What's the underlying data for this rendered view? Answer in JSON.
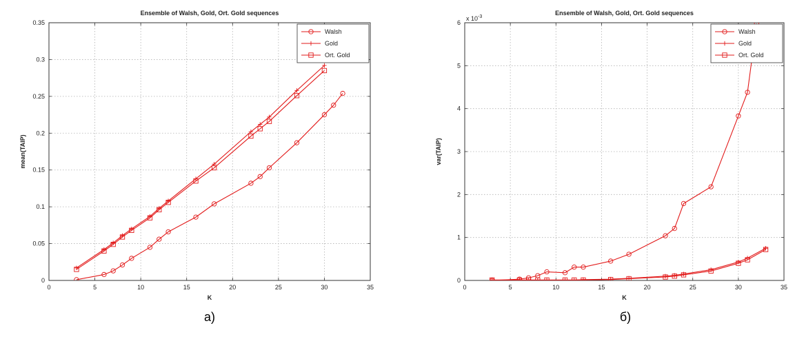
{
  "chart_data": [
    {
      "type": "line",
      "title": "Ensemble of Walsh, Gold, Ort. Gold sequences",
      "xlabel": "K",
      "ylabel": "mean(TAIP)",
      "xlim": [
        0,
        35
      ],
      "ylim": [
        0,
        0.35
      ],
      "xticks": [
        "0",
        "5",
        "10",
        "15",
        "20",
        "25",
        "30",
        "35"
      ],
      "yticks": [
        "0",
        "0.05",
        "0.1",
        "0.15",
        "0.2",
        "0.25",
        "0.3",
        "0.35"
      ],
      "exponent_label": "",
      "grid": true,
      "legend_position": "top-right",
      "caption": "а)",
      "series": [
        {
          "name": "Walsh",
          "marker": "circle",
          "x": [
            3,
            6,
            7,
            8,
            9,
            11,
            12,
            13,
            16,
            18,
            22,
            23,
            24,
            27,
            30,
            31,
            32
          ],
          "y": [
            0.001,
            0.008,
            0.013,
            0.021,
            0.03,
            0.045,
            0.056,
            0.066,
            0.086,
            0.104,
            0.132,
            0.141,
            0.153,
            0.187,
            0.225,
            0.238,
            0.254
          ]
        },
        {
          "name": "Gold",
          "marker": "plus",
          "x": [
            3,
            6,
            7,
            8,
            9,
            11,
            12,
            13,
            16,
            18,
            22,
            23,
            24,
            27,
            30
          ],
          "y": [
            0.017,
            0.042,
            0.051,
            0.061,
            0.07,
            0.087,
            0.098,
            0.108,
            0.138,
            0.158,
            0.202,
            0.212,
            0.222,
            0.258,
            0.292
          ]
        },
        {
          "name": "Ort. Gold",
          "marker": "square",
          "x": [
            3,
            6,
            7,
            8,
            9,
            11,
            12,
            13,
            16,
            18,
            22,
            23,
            24,
            27,
            30
          ],
          "y": [
            0.015,
            0.04,
            0.049,
            0.059,
            0.068,
            0.085,
            0.096,
            0.106,
            0.135,
            0.153,
            0.196,
            0.206,
            0.216,
            0.251,
            0.285
          ]
        }
      ]
    },
    {
      "type": "line",
      "title": "Ensemble of Walsh, Gold, Ort. Gold sequences",
      "xlabel": "K",
      "ylabel": "var(TAIP)",
      "xlim": [
        0,
        35
      ],
      "ylim": [
        0,
        6
      ],
      "xticks": [
        "0",
        "5",
        "10",
        "15",
        "20",
        "25",
        "30",
        "35"
      ],
      "yticks": [
        "0",
        "1",
        "2",
        "3",
        "4",
        "5",
        "6"
      ],
      "exponent_label": "x 10",
      "exponent_power": "-3",
      "grid": true,
      "legend_position": "top-right",
      "caption": "б)",
      "series": [
        {
          "name": "Walsh",
          "marker": "circle",
          "x": [
            3,
            6,
            7,
            8,
            9,
            11,
            12,
            13,
            16,
            18,
            22,
            23,
            24,
            27,
            30,
            31,
            32
          ],
          "y": [
            0.0,
            0.03,
            0.06,
            0.11,
            0.2,
            0.18,
            0.31,
            0.31,
            0.45,
            0.61,
            1.04,
            1.21,
            1.79,
            2.18,
            3.83,
            4.38,
            5.98
          ]
        },
        {
          "name": "Gold",
          "marker": "plus",
          "x": [
            3,
            6,
            7,
            8,
            9,
            11,
            12,
            13,
            16,
            18,
            22,
            23,
            24,
            27,
            30,
            31,
            33
          ],
          "y": [
            0.01,
            0.01,
            0.01,
            0.01,
            0.01,
            0.01,
            0.01,
            0.02,
            0.03,
            0.05,
            0.1,
            0.12,
            0.15,
            0.25,
            0.43,
            0.52,
            0.75
          ]
        },
        {
          "name": "Ort. Gold",
          "marker": "square",
          "x": [
            3,
            6,
            7,
            8,
            9,
            11,
            12,
            13,
            16,
            18,
            22,
            23,
            24,
            27,
            30,
            31,
            33
          ],
          "y": [
            0.01,
            0.01,
            0.01,
            0.01,
            0.01,
            0.01,
            0.01,
            0.01,
            0.02,
            0.04,
            0.08,
            0.1,
            0.13,
            0.22,
            0.4,
            0.48,
            0.72
          ]
        }
      ]
    }
  ]
}
